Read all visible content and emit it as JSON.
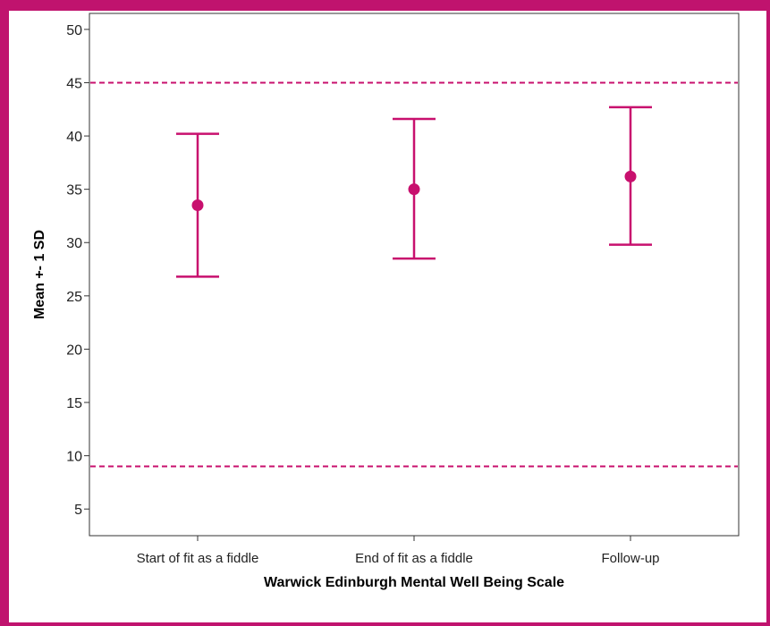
{
  "chart_data": {
    "type": "errorbar",
    "xlabel": "Warwick Edinburgh Mental Well Being Scale",
    "ylabel": "Mean +- 1 SD",
    "ylim": [
      2.5,
      51.5
    ],
    "yticks": [
      5,
      10,
      15,
      20,
      25,
      30,
      35,
      40,
      45,
      50
    ],
    "categories": [
      "Start of fit as a fiddle",
      "End of fit as a fiddle",
      "Follow-up"
    ],
    "means": [
      33.5,
      35.0,
      36.2
    ],
    "lower": [
      26.8,
      28.5,
      29.8
    ],
    "upper": [
      40.2,
      41.6,
      42.7
    ],
    "reference_lines": [
      45,
      9
    ],
    "color": "#c8106e",
    "grid": false
  }
}
